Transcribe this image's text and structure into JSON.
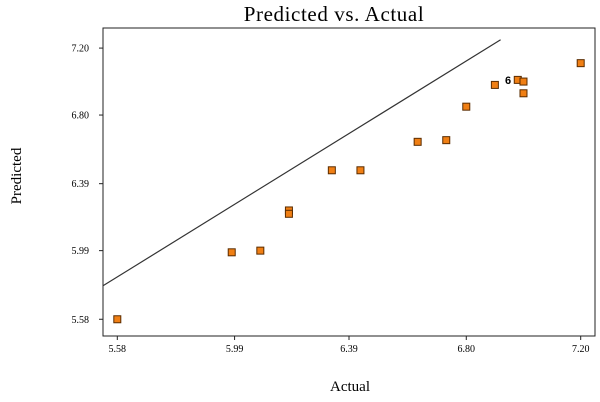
{
  "colors": {
    "marker_fill": "#f07f14",
    "marker_stroke": "#5a2c00",
    "line": "#333333",
    "axis": "#222222"
  },
  "chart_data": {
    "type": "scatter",
    "title": "Predicted vs. Actual",
    "xlabel": "Actual",
    "ylabel": "Predicted",
    "xlim": [
      5.53,
      7.25
    ],
    "ylim": [
      5.48,
      7.32
    ],
    "x_ticks": [
      "5.58",
      "5.99",
      "6.39",
      "6.80",
      "7.20"
    ],
    "y_ticks": [
      "5.58",
      "5.99",
      "6.39",
      "6.80",
      "7.20"
    ],
    "grid": false,
    "points": [
      {
        "x": 5.58,
        "y": 5.58
      },
      {
        "x": 5.98,
        "y": 5.98
      },
      {
        "x": 6.08,
        "y": 5.99
      },
      {
        "x": 6.18,
        "y": 6.23
      },
      {
        "x": 6.18,
        "y": 6.21
      },
      {
        "x": 6.33,
        "y": 6.47
      },
      {
        "x": 6.43,
        "y": 6.47
      },
      {
        "x": 6.63,
        "y": 6.64
      },
      {
        "x": 6.73,
        "y": 6.65
      },
      {
        "x": 6.8,
        "y": 6.85
      },
      {
        "x": 6.9,
        "y": 6.98
      },
      {
        "x": 6.98,
        "y": 7.01
      },
      {
        "x": 7.0,
        "y": 7.0
      },
      {
        "x": 7.0,
        "y": 6.93
      },
      {
        "x": 7.2,
        "y": 7.11
      }
    ],
    "reference_line": {
      "x": [
        5.53,
        6.92
      ],
      "y": [
        5.78,
        7.25
      ]
    },
    "annotations": [
      {
        "text": "6",
        "x": 6.96,
        "y": 7.01
      }
    ]
  }
}
